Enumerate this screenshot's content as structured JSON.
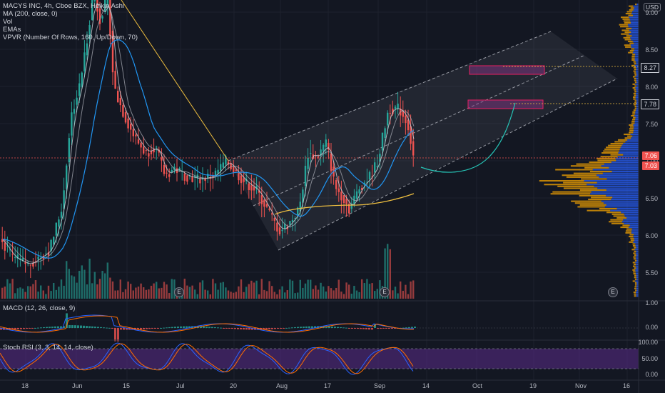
{
  "legend": {
    "symbol": "MACYS INC, 4h, Cboe BZX, Heikin Ashi",
    "indicators": [
      "MA (200, close, 0)",
      "Vol",
      "EMAs",
      "VPVR (Number Of Rows, 160, Up/Down, 70)"
    ],
    "macd": "MACD (12, 26, close, 9)",
    "stoch": "Stoch RSI (3, 3, 14, 14, close)"
  },
  "currency": "USD",
  "price_axis": [
    "9.00",
    "8.50",
    "8.00",
    "7.50",
    "7.00",
    "6.50",
    "6.00",
    "5.50"
  ],
  "price_badges": [
    {
      "label": "8.27",
      "kind": "level"
    },
    {
      "label": "7.78",
      "kind": "level"
    },
    {
      "label": "7.06",
      "kind": "last"
    },
    {
      "label": "7.03",
      "kind": "close"
    }
  ],
  "macd_axis": [
    "1.00",
    "0.00"
  ],
  "stoch_axis": [
    "100.00",
    "50.00",
    "0.00"
  ],
  "time_axis": [
    "18",
    "Jun",
    "15",
    "Jul",
    "20",
    "Aug",
    "17",
    "Sep",
    "14",
    "Oct",
    "19",
    "Nov",
    "16"
  ],
  "earnings_marker": "E",
  "colors": {
    "bg": "#131722",
    "up": "#26a69a",
    "down": "#ef5350",
    "ma200": "#f0c040",
    "trendline": "#f0c040",
    "channel": "#5d606b",
    "vpvr_up": "#2962ff",
    "vpvr_down": "#f7a600",
    "zone": "#8e3a8e",
    "projection": "#26c6b8",
    "stoch_band": "#5b2c8a"
  }
}
